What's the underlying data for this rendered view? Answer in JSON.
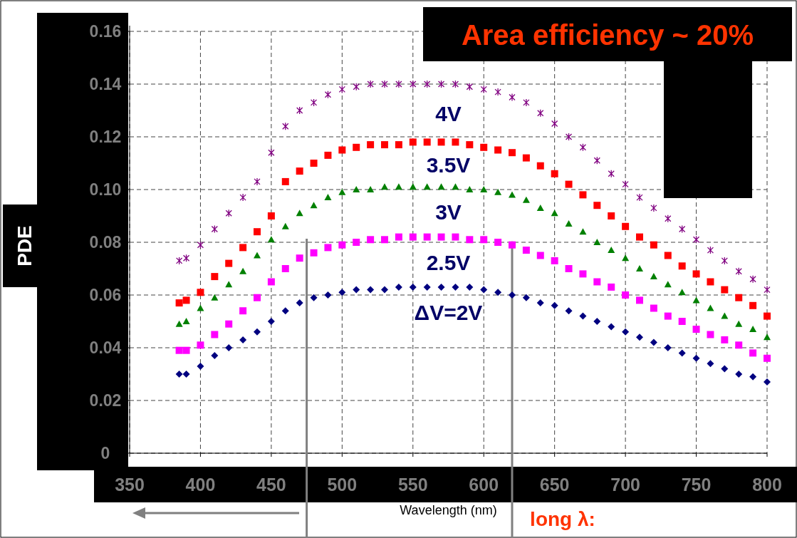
{
  "chart_data": {
    "type": "scatter",
    "title": "Area efficiency ~ 20%",
    "xlabel": "Wavelength (nm)",
    "ylabel": "PDE",
    "x": [
      385,
      390,
      400,
      410,
      420,
      430,
      440,
      450,
      460,
      470,
      480,
      490,
      500,
      510,
      520,
      530,
      540,
      550,
      560,
      570,
      580,
      590,
      600,
      610,
      620,
      630,
      640,
      650,
      660,
      670,
      680,
      690,
      700,
      710,
      720,
      730,
      740,
      750,
      760,
      770,
      780,
      790,
      800
    ],
    "series": [
      {
        "name": "4V",
        "color": "#800080",
        "marker": "cross",
        "values": [
          0.073,
          0.074,
          0.079,
          0.085,
          0.091,
          0.097,
          0.103,
          0.114,
          0.124,
          0.13,
          0.133,
          0.136,
          0.138,
          0.139,
          0.14,
          0.14,
          0.14,
          0.14,
          0.14,
          0.14,
          0.14,
          0.139,
          0.138,
          0.137,
          0.135,
          0.133,
          0.129,
          0.125,
          0.12,
          0.116,
          0.111,
          0.106,
          0.102,
          0.097,
          0.093,
          0.089,
          0.085,
          0.081,
          0.077,
          0.073,
          0.069,
          0.066,
          0.062
        ]
      },
      {
        "name": "3.5V",
        "color": "#ff0000",
        "marker": "square",
        "values": [
          0.057,
          0.058,
          0.061,
          0.067,
          0.072,
          0.078,
          0.084,
          0.09,
          0.103,
          0.107,
          0.11,
          0.113,
          0.115,
          0.116,
          0.117,
          0.117,
          0.117,
          0.118,
          0.118,
          0.118,
          0.118,
          0.117,
          0.116,
          0.115,
          0.114,
          0.112,
          0.109,
          0.106,
          0.102,
          0.098,
          0.094,
          0.09,
          0.086,
          0.082,
          0.079,
          0.075,
          0.071,
          0.068,
          0.065,
          0.062,
          0.059,
          0.056,
          0.052
        ]
      },
      {
        "name": "3V",
        "color": "#008000",
        "marker": "triangle",
        "values": [
          0.049,
          0.05,
          0.055,
          0.059,
          0.064,
          0.069,
          0.075,
          0.081,
          0.086,
          0.091,
          0.094,
          0.097,
          0.099,
          0.1,
          0.1,
          0.101,
          0.101,
          0.101,
          0.101,
          0.101,
          0.101,
          0.1,
          0.1,
          0.099,
          0.098,
          0.096,
          0.093,
          0.091,
          0.087,
          0.084,
          0.08,
          0.077,
          0.074,
          0.07,
          0.067,
          0.064,
          0.061,
          0.058,
          0.055,
          0.052,
          0.049,
          0.047,
          0.044
        ]
      },
      {
        "name": "2.5V",
        "color": "#ff00ff",
        "marker": "square",
        "values": [
          0.039,
          0.039,
          0.041,
          0.045,
          0.049,
          0.054,
          0.059,
          0.065,
          0.07,
          0.074,
          0.076,
          0.078,
          0.079,
          0.08,
          0.081,
          0.081,
          0.082,
          0.082,
          0.082,
          0.082,
          0.082,
          0.081,
          0.081,
          0.08,
          0.079,
          0.077,
          0.075,
          0.073,
          0.07,
          0.068,
          0.065,
          0.063,
          0.06,
          0.058,
          0.055,
          0.052,
          0.05,
          0.047,
          0.045,
          0.043,
          0.041,
          0.038,
          0.036
        ]
      },
      {
        "name": "ΔV=2V",
        "color": "#000080",
        "marker": "diamond",
        "values": [
          0.03,
          0.03,
          0.033,
          0.037,
          0.04,
          0.043,
          0.046,
          0.05,
          0.054,
          0.057,
          0.059,
          0.06,
          0.061,
          0.062,
          0.062,
          0.062,
          0.063,
          0.063,
          0.063,
          0.063,
          0.063,
          0.063,
          0.062,
          0.061,
          0.06,
          0.059,
          0.057,
          0.056,
          0.054,
          0.052,
          0.05,
          0.048,
          0.046,
          0.044,
          0.042,
          0.04,
          0.038,
          0.036,
          0.034,
          0.032,
          0.03,
          0.029,
          0.027
        ]
      }
    ],
    "xlim": [
      350,
      800
    ],
    "xticks": [
      350,
      400,
      450,
      500,
      550,
      600,
      650,
      700,
      750,
      800
    ],
    "ylim": [
      0,
      0.16
    ],
    "yticks": [
      0,
      0.02,
      0.04,
      0.06,
      0.08,
      {
        "value": 0.1,
        "label": "0.10"
      },
      0.12,
      0.14,
      0.16
    ],
    "grid": true,
    "ref_lines": [
      {
        "axis": "x",
        "value": 475,
        "color": "#808080"
      },
      {
        "axis": "x",
        "value": 620,
        "color": "#808080"
      }
    ],
    "annotations": [
      "long λ:"
    ]
  }
}
